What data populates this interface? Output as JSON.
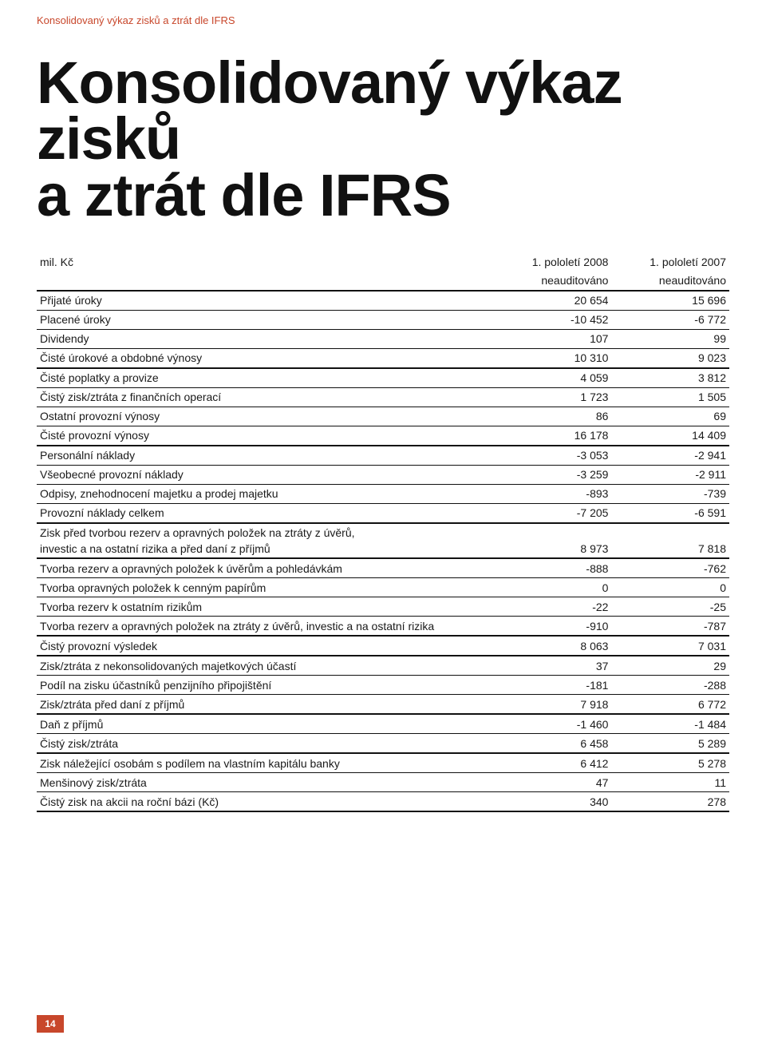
{
  "colors": {
    "accent": "#c8472b",
    "text": "#1a1a1a",
    "border_heavy": "#111111",
    "border_light": "#111111",
    "background": "#ffffff",
    "pagenum_text": "#ffffff"
  },
  "breadcrumb": "Konsolidovaný výkaz zisků a ztrát dle IFRS",
  "title": {
    "line1": "Konsolidovaný výkaz zisků",
    "line2": "a ztrát dle IFRS"
  },
  "table": {
    "unit_label": "mil. Kč",
    "col1": "1. pololetí 2008",
    "col2": "1. pololetí 2007",
    "sub1": "neauditováno",
    "sub2": "neauditováno",
    "rows": [
      {
        "label": "Přijaté úroky",
        "v1": "20 654",
        "v2": "15 696",
        "border": "thin"
      },
      {
        "label": "Placené úroky",
        "v1": "-10 452",
        "v2": "-6 772",
        "border": "thin"
      },
      {
        "label": "Dividendy",
        "v1": "107",
        "v2": "99",
        "border": "thin"
      },
      {
        "label": "Čisté úrokové a obdobné výnosy",
        "v1": "10 310",
        "v2": "9 023",
        "border": "section"
      },
      {
        "label": "Čisté poplatky a provize",
        "v1": "4 059",
        "v2": "3 812",
        "border": "thin"
      },
      {
        "label": "Čistý zisk/ztráta z finančních operací",
        "v1": "1 723",
        "v2": "1 505",
        "border": "thin"
      },
      {
        "label": "Ostatní provozní výnosy",
        "v1": "86",
        "v2": "69",
        "border": "thin"
      },
      {
        "label": "Čisté provozní výnosy",
        "v1": "16 178",
        "v2": "14 409",
        "border": "section"
      },
      {
        "label": "Personální náklady",
        "v1": "-3 053",
        "v2": "-2 941",
        "border": "thin"
      },
      {
        "label": "Všeobecné provozní náklady",
        "v1": "-3 259",
        "v2": "-2 911",
        "border": "thin"
      },
      {
        "label": "Odpisy, znehodnocení majetku a prodej majetku",
        "v1": "-893",
        "v2": "-739",
        "border": "thin"
      },
      {
        "label": "Provozní náklady celkem",
        "v1": "-7 205",
        "v2": "-6 591",
        "border": "section"
      },
      {
        "label": "Zisk před tvorbou rezerv a opravných položek na ztráty z úvěrů,",
        "v1": "",
        "v2": "",
        "border": "none"
      },
      {
        "label": "investic a na ostatní rizika a před daní z příjmů",
        "v1": "8 973",
        "v2": "7 818",
        "border": "section",
        "tight": true
      },
      {
        "label": "Tvorba rezerv a opravných položek k úvěrům a pohledávkám",
        "v1": "-888",
        "v2": "-762",
        "border": "thin"
      },
      {
        "label": "Tvorba opravných položek k cenným papírům",
        "v1": "0",
        "v2": "0",
        "border": "thin"
      },
      {
        "label": "Tvorba rezerv k ostatním rizikům",
        "v1": "-22",
        "v2": "-25",
        "border": "thin"
      },
      {
        "label": "Tvorba rezerv a opravných položek na ztráty z úvěrů, investic a na ostatní rizika",
        "v1": "-910",
        "v2": "-787",
        "border": "section"
      },
      {
        "label": "Čistý provozní výsledek",
        "v1": "8 063",
        "v2": "7 031",
        "border": "section"
      },
      {
        "label": "Zisk/ztráta z nekonsolidovaných majetkových účastí",
        "v1": "37",
        "v2": "29",
        "border": "thin"
      },
      {
        "label": "Podíl na zisku účastníků penzijního připojištění",
        "v1": "-181",
        "v2": "-288",
        "border": "thin"
      },
      {
        "label": "Zisk/ztráta před daní z příjmů",
        "v1": "7 918",
        "v2": "6 772",
        "border": "section"
      },
      {
        "label": "Daň z příjmů",
        "v1": "-1 460",
        "v2": "-1 484",
        "border": "thin"
      },
      {
        "label": "Čistý zisk/ztráta",
        "v1": "6 458",
        "v2": "5 289",
        "border": "section"
      },
      {
        "label": "Zisk náležející osobám s podílem na vlastním kapitálu banky",
        "v1": "6 412",
        "v2": "5 278",
        "border": "thin"
      },
      {
        "label": "Menšinový zisk/ztráta",
        "v1": "47",
        "v2": "11",
        "border": "thin"
      },
      {
        "label": "Čistý zisk na akcii na roční bázi (Kč)",
        "v1": "340",
        "v2": "278",
        "border": "section"
      }
    ]
  },
  "page_number": "14"
}
